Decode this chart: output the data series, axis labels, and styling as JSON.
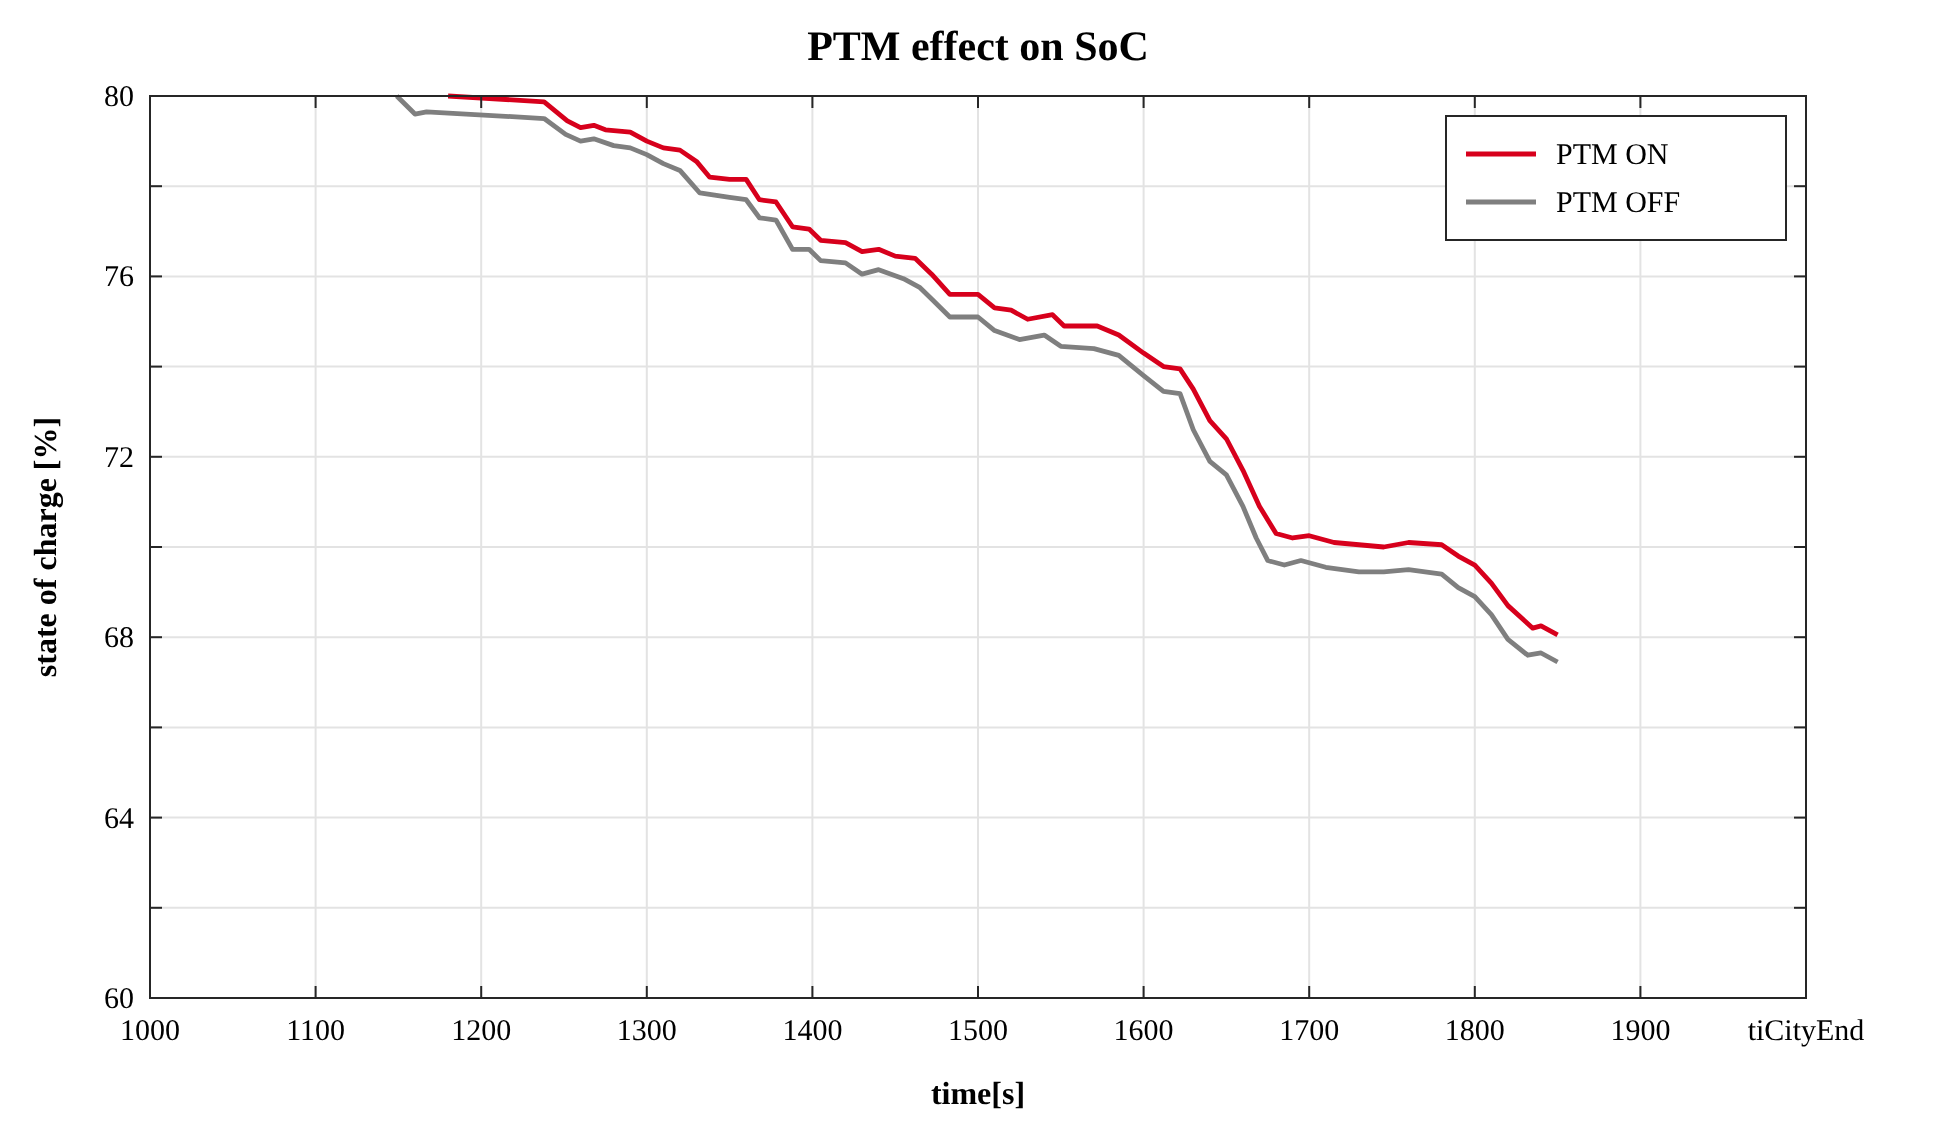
{
  "chart_data": {
    "type": "line",
    "title": "PTM effect on SoC",
    "xlabel": "time[s]",
    "ylabel": "state of charge [%]",
    "xlim": [
      1000,
      2000
    ],
    "xticks": [
      1000,
      1100,
      1200,
      1300,
      1400,
      1500,
      1600,
      1700,
      1800,
      1900,
      {
        "value": 2000,
        "label": "tiCityEnd"
      }
    ],
    "ylim": [
      60,
      80
    ],
    "yticks": [
      60,
      {
        "value": 62,
        "label": null
      },
      64,
      {
        "value": 66,
        "label": null
      },
      68,
      {
        "value": 70,
        "label": null
      },
      72,
      {
        "value": 74,
        "label": null
      },
      76,
      {
        "value": 78,
        "label": null
      },
      80
    ],
    "grid": true,
    "legend": "top right",
    "line_style": "solid",
    "marker": "none",
    "series": [
      {
        "name": "PTM ON",
        "color": "#d7001c",
        "x": [
          1180,
          1238,
          1252,
          1260,
          1268,
          1275,
          1290,
          1300,
          1310,
          1320,
          1330,
          1338,
          1350,
          1360,
          1368,
          1378,
          1388,
          1398,
          1405,
          1420,
          1430,
          1440,
          1450,
          1462,
          1472,
          1483,
          1500,
          1510,
          1520,
          1530,
          1545,
          1552,
          1572,
          1585,
          1600,
          1612,
          1622,
          1630,
          1640,
          1650,
          1660,
          1670,
          1680,
          1690,
          1700,
          1715,
          1730,
          1745,
          1760,
          1780,
          1790,
          1800,
          1810,
          1820,
          1835,
          1840,
          1850
        ],
        "values": [
          80.0,
          79.87,
          79.45,
          79.3,
          79.35,
          79.25,
          79.2,
          79.0,
          78.85,
          78.8,
          78.55,
          78.2,
          78.15,
          78.15,
          77.7,
          77.65,
          77.1,
          77.05,
          76.8,
          76.75,
          76.55,
          76.6,
          76.45,
          76.4,
          76.05,
          75.6,
          75.6,
          75.3,
          75.25,
          75.05,
          75.15,
          74.9,
          74.9,
          74.7,
          74.3,
          74.0,
          73.95,
          73.5,
          72.8,
          72.4,
          71.7,
          70.9,
          70.3,
          70.2,
          70.25,
          70.1,
          70.05,
          70.0,
          70.1,
          70.05,
          69.8,
          69.6,
          69.2,
          68.7,
          68.2,
          68.25,
          68.05
        ]
      },
      {
        "name": "PTM OFF",
        "color": "#7f7f7f",
        "x": [
          1149,
          1160,
          1167,
          1238,
          1251,
          1260,
          1268,
          1280,
          1290,
          1300,
          1310,
          1320,
          1332,
          1350,
          1360,
          1368,
          1378,
          1388,
          1398,
          1405,
          1420,
          1430,
          1440,
          1455,
          1465,
          1472,
          1483,
          1500,
          1510,
          1525,
          1540,
          1550,
          1570,
          1585,
          1600,
          1612,
          1622,
          1630,
          1640,
          1650,
          1660,
          1668,
          1675,
          1685,
          1695,
          1710,
          1730,
          1745,
          1760,
          1780,
          1790,
          1800,
          1810,
          1820,
          1832,
          1840,
          1850
        ],
        "values": [
          80.0,
          79.6,
          79.65,
          79.5,
          79.15,
          79.0,
          79.05,
          78.9,
          78.85,
          78.7,
          78.5,
          78.35,
          77.85,
          77.75,
          77.7,
          77.3,
          77.25,
          76.6,
          76.6,
          76.35,
          76.3,
          76.05,
          76.15,
          75.95,
          75.75,
          75.5,
          75.1,
          75.1,
          74.8,
          74.6,
          74.7,
          74.45,
          74.4,
          74.25,
          73.8,
          73.45,
          73.4,
          72.6,
          71.9,
          71.6,
          70.9,
          70.2,
          69.7,
          69.6,
          69.7,
          69.55,
          69.45,
          69.45,
          69.5,
          69.4,
          69.1,
          68.9,
          68.5,
          67.95,
          67.6,
          67.65,
          67.45
        ]
      }
    ]
  }
}
